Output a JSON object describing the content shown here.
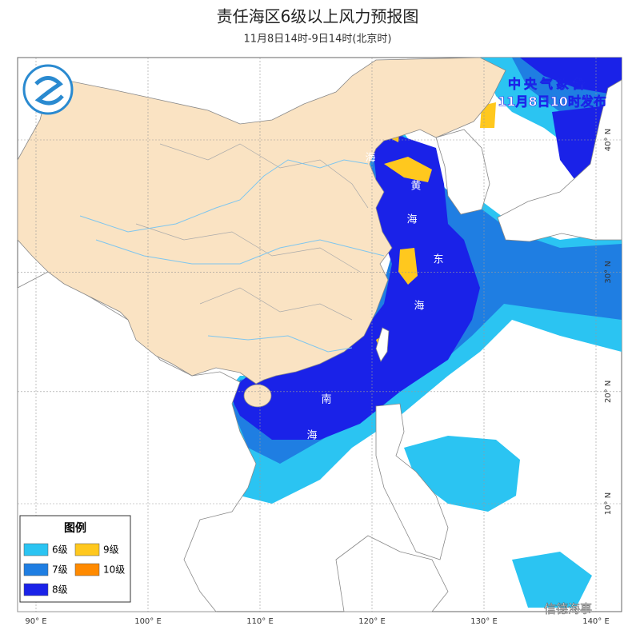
{
  "header": {
    "title": "责任海区6级以上风力预报图",
    "subtitle": "11月8日14时-9日14时(北京时)"
  },
  "issuer": {
    "agency": "中央气象台",
    "issued": "11月8日10时发布"
  },
  "legend": {
    "title": "图例",
    "items": [
      {
        "label": "6级",
        "color": "#2bc4f2"
      },
      {
        "label": "7级",
        "color": "#1f7ee2"
      },
      {
        "label": "8级",
        "color": "#1a22e8"
      },
      {
        "label": "9级",
        "color": "#ffc81e"
      },
      {
        "label": "10级",
        "color": "#ff8a00"
      }
    ]
  },
  "sea_labels": [
    "海",
    "黄",
    "海",
    "东",
    "海",
    "南",
    "海"
  ],
  "grid": {
    "lon": [
      {
        "value": 90,
        "label": "90° E"
      },
      {
        "value": 100,
        "label": "100° E"
      },
      {
        "value": 110,
        "label": "110° E"
      },
      {
        "value": 120,
        "label": "120° E"
      },
      {
        "value": 130,
        "label": "130° E"
      },
      {
        "value": 140,
        "label": "140° E"
      }
    ],
    "lat": [
      {
        "value": 40,
        "label": "40° N"
      },
      {
        "value": 30,
        "label": "30° N"
      },
      {
        "value": 20,
        "label": "20° N"
      },
      {
        "value": 10,
        "label": "10° N"
      }
    ]
  },
  "watermark": "信德海事"
}
